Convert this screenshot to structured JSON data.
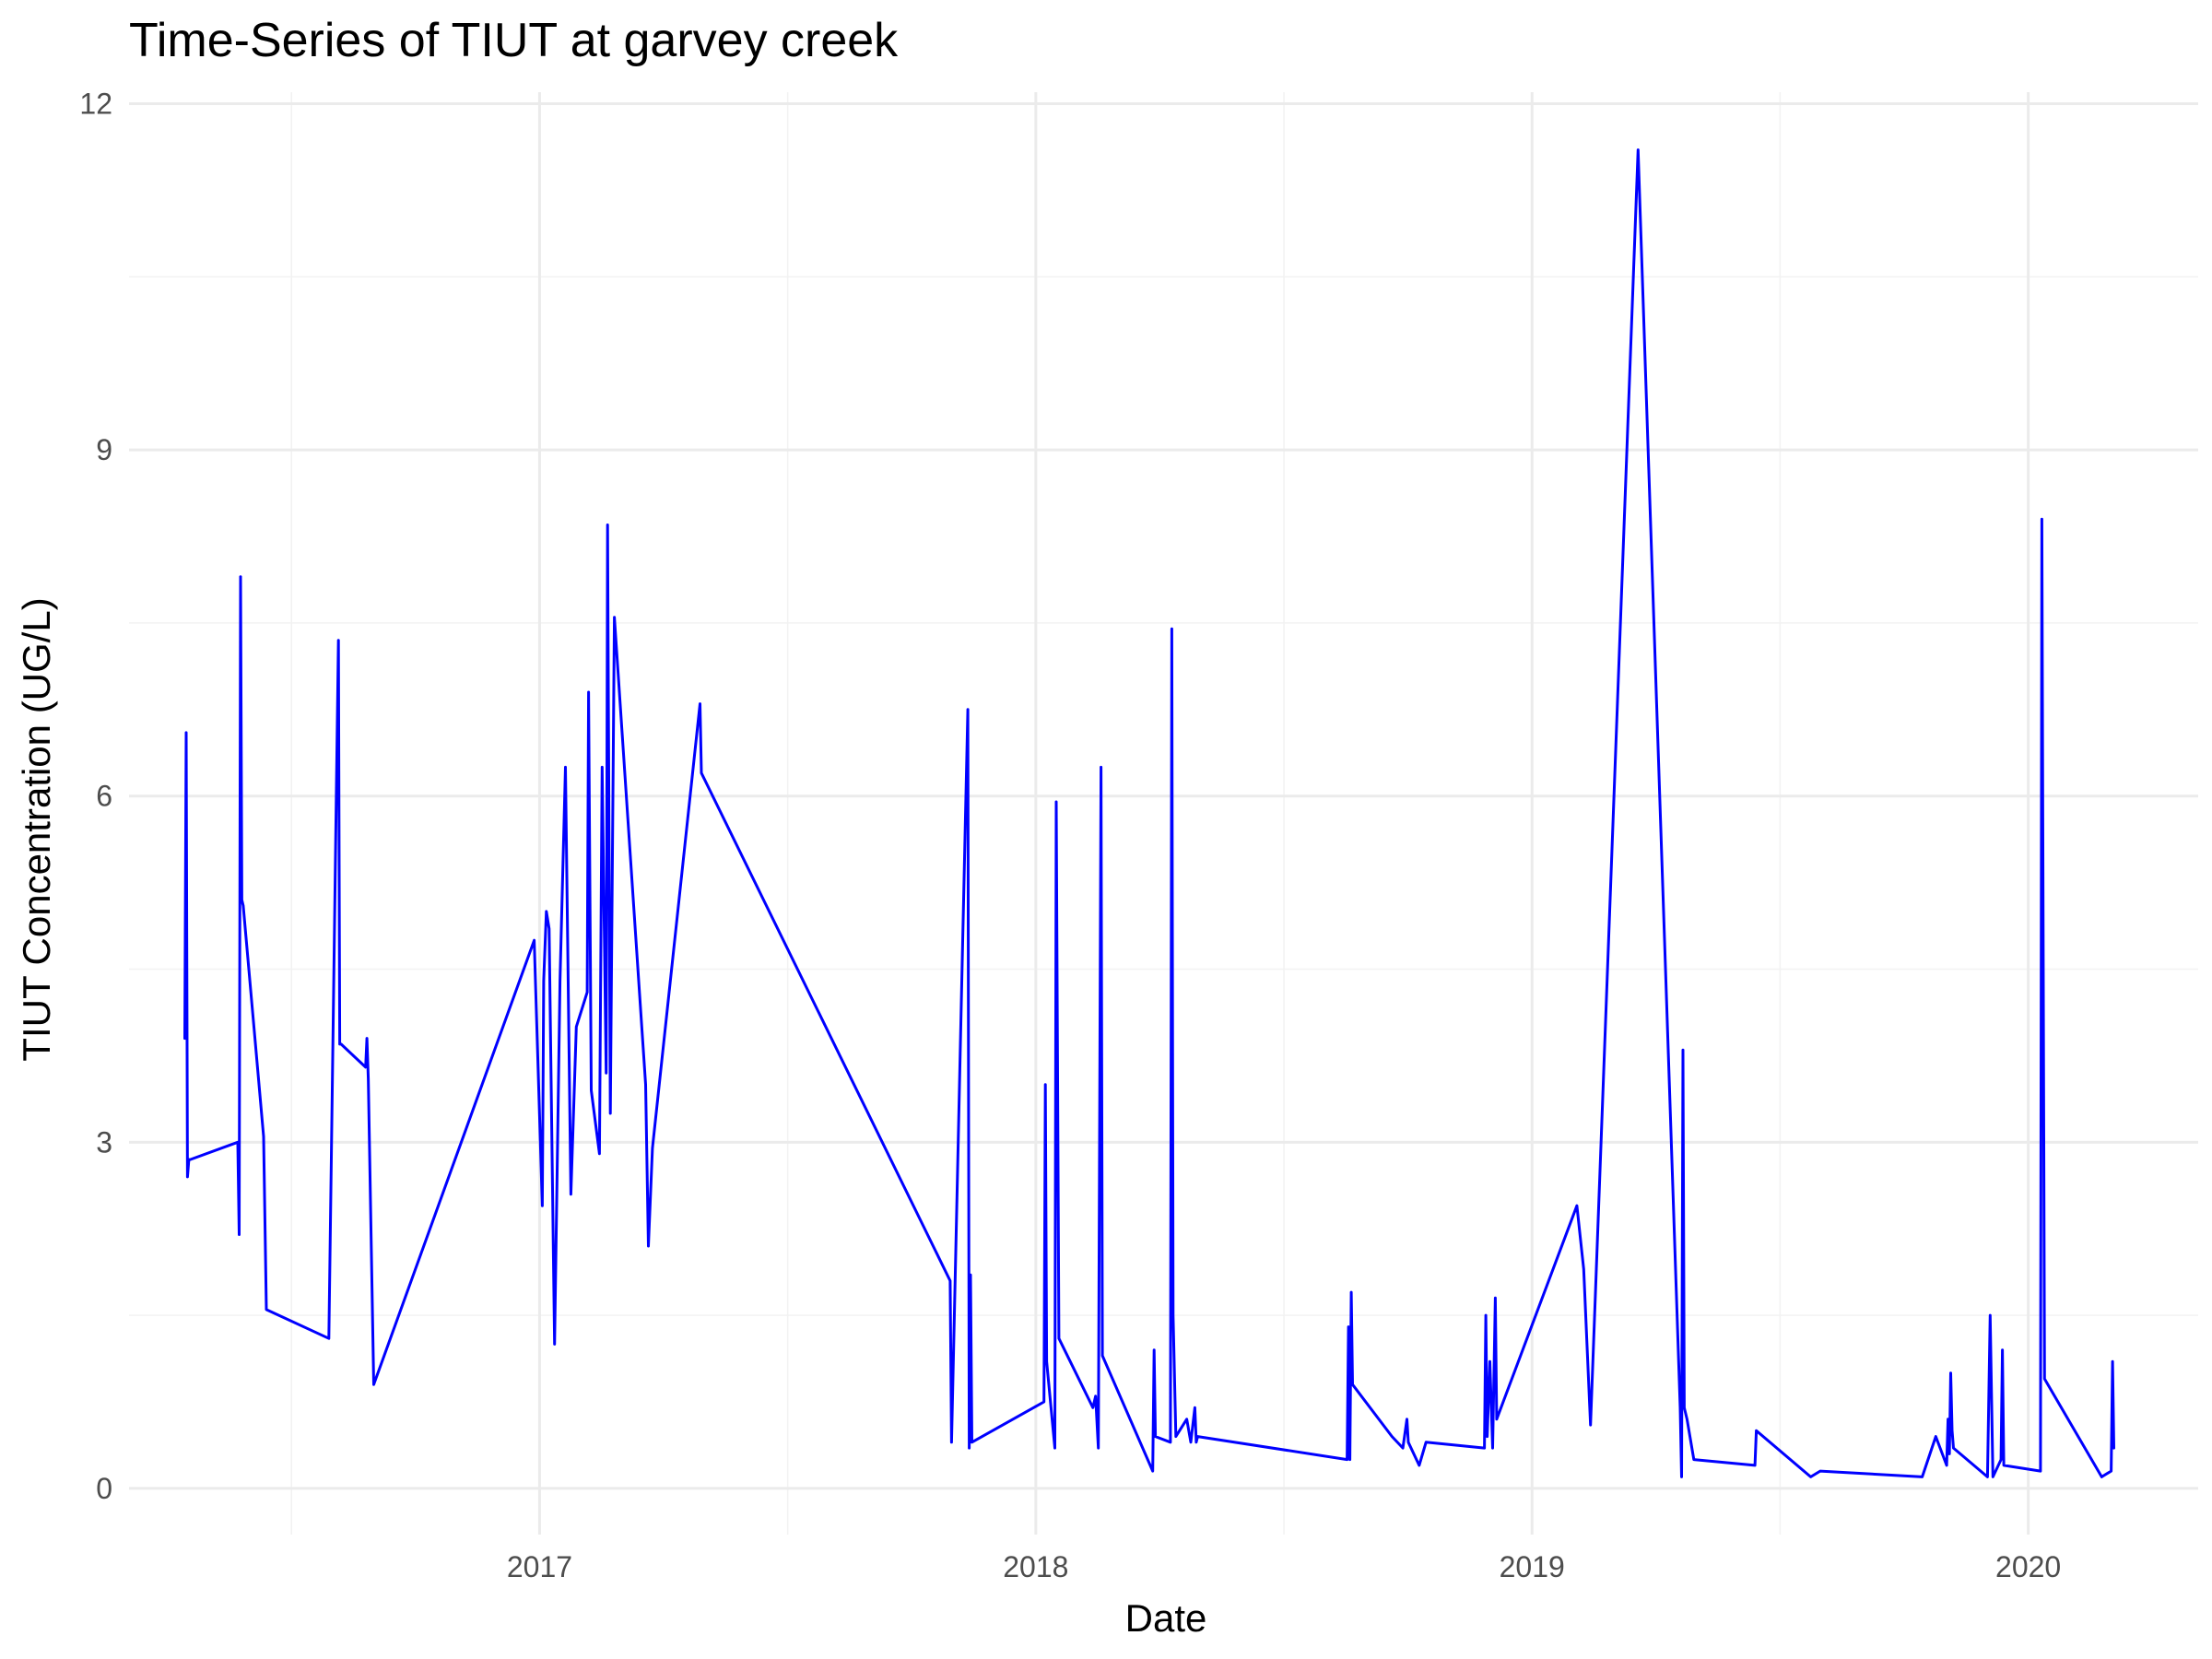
{
  "chart_data": {
    "type": "line",
    "title": "Time-Series of TIUT at garvey creek",
    "xlabel": "Date",
    "ylabel": "TIUT Concentration (UG/L)",
    "xlim": [
      "2016-03-05",
      "2020-05-05"
    ],
    "ylim": [
      -0.4,
      12.1
    ],
    "x_ticks": [
      "2017-01-01",
      "2018-01-01",
      "2019-01-01",
      "2020-01-01"
    ],
    "x_tick_labels": [
      "2017",
      "2018",
      "2019",
      "2020"
    ],
    "y_ticks": [
      0,
      3,
      6,
      9,
      12
    ],
    "y_tick_labels": [
      "0",
      "3",
      "6",
      "9",
      "12"
    ],
    "grid": true,
    "legend": "none",
    "line_color": "#0000ff",
    "series": [
      {
        "x": [
          "2016-04-15",
          "2016-04-16",
          "2016-04-17",
          "2016-04-18",
          "2016-04-19",
          "2016-05-24",
          "2016-05-25",
          "2016-05-26",
          "2016-05-27",
          "2016-05-28",
          "2016-06-12",
          "2016-06-14",
          "2016-07-30",
          "2016-08-06",
          "2016-08-07",
          "2016-08-08",
          "2016-08-26",
          "2016-08-27",
          "2016-08-28",
          "2016-09-01",
          "2016-12-28",
          "2017-01-03",
          "2017-01-04",
          "2017-01-06",
          "2017-01-08",
          "2017-01-12",
          "2017-01-16",
          "2017-01-20",
          "2017-01-24",
          "2017-01-28",
          "2017-02-05",
          "2017-02-06",
          "2017-02-08",
          "2017-02-14",
          "2017-02-16",
          "2017-02-19",
          "2017-02-20",
          "2017-02-22",
          "2017-02-25",
          "2017-03-20",
          "2017-03-22",
          "2017-03-25",
          "2017-04-29",
          "2017-04-30",
          "2017-10-30",
          "2017-10-31",
          "2017-11-12",
          "2017-11-13",
          "2017-11-14",
          "2017-11-15",
          "2018-01-07",
          "2018-01-08",
          "2018-01-09",
          "2018-01-15",
          "2018-01-16",
          "2018-01-18",
          "2018-02-12",
          "2018-02-14",
          "2018-02-16",
          "2018-02-18",
          "2018-02-19",
          "2018-03-28",
          "2018-03-29",
          "2018-03-30",
          "2018-04-10",
          "2018-04-11",
          "2018-04-12",
          "2018-04-14",
          "2018-04-22",
          "2018-04-25",
          "2018-04-28",
          "2018-04-29",
          "2018-04-30",
          "2018-08-18",
          "2018-08-19",
          "2018-08-20",
          "2018-08-21",
          "2018-08-22",
          "2018-09-20",
          "2018-09-28",
          "2018-10-01",
          "2018-10-02",
          "2018-10-10",
          "2018-10-15",
          "2018-11-27",
          "2018-11-28",
          "2018-11-29",
          "2018-12-01",
          "2018-12-03",
          "2018-12-05",
          "2018-12-06",
          "2019-02-03",
          "2019-02-08",
          "2019-02-13",
          "2019-03-20",
          "2019-04-20",
          "2019-04-21",
          "2019-04-22",
          "2019-04-23",
          "2019-04-25",
          "2019-04-30",
          "2019-06-14",
          "2019-06-15",
          "2019-07-25",
          "2019-08-01",
          "2019-10-15",
          "2019-10-25",
          "2019-11-02",
          "2019-11-03",
          "2019-11-04",
          "2019-11-05",
          "2019-11-06",
          "2019-11-07",
          "2019-12-02",
          "2019-12-04",
          "2019-12-06",
          "2019-12-12",
          "2019-12-13",
          "2019-12-14",
          "2020-01-10",
          "2020-01-11",
          "2020-01-13",
          "2020-02-24",
          "2020-03-02",
          "2020-03-03",
          "2020-03-04"
        ],
        "y": [
          3.9,
          6.55,
          2.7,
          2.85,
          2.85,
          3.0,
          2.2,
          7.9,
          5.1,
          5.05,
          3.05,
          1.55,
          1.3,
          7.35,
          3.85,
          3.85,
          3.65,
          3.9,
          3.55,
          0.9,
          4.75,
          2.45,
          4.4,
          5.0,
          4.85,
          1.25,
          4.4,
          6.25,
          2.55,
          4.0,
          4.3,
          6.9,
          3.45,
          2.9,
          6.25,
          3.6,
          8.35,
          3.25,
          7.55,
          3.5,
          2.1,
          2.95,
          6.8,
          6.2,
          1.8,
          0.4,
          6.75,
          0.35,
          1.85,
          0.4,
          0.75,
          3.5,
          1.1,
          0.35,
          5.95,
          1.3,
          0.7,
          0.8,
          0.35,
          6.25,
          1.15,
          0.15,
          1.2,
          0.45,
          0.4,
          7.45,
          1.5,
          0.45,
          0.6,
          0.4,
          0.7,
          0.4,
          0.45,
          0.25,
          1.4,
          0.25,
          1.7,
          0.9,
          0.45,
          0.35,
          0.6,
          0.4,
          0.2,
          0.4,
          0.35,
          1.5,
          0.45,
          1.1,
          0.35,
          1.65,
          0.6,
          2.45,
          1.9,
          0.55,
          11.6,
          0.7,
          0.1,
          3.8,
          0.7,
          0.6,
          0.25,
          0.2,
          0.5,
          0.1,
          0.15,
          0.1,
          0.45,
          0.2,
          0.6,
          0.3,
          1.0,
          0.5,
          0.35,
          0.1,
          1.5,
          0.1,
          0.25,
          1.2,
          0.2,
          0.15,
          8.4,
          0.95,
          0.1,
          0.15,
          1.1,
          0.35
        ]
      }
    ]
  }
}
